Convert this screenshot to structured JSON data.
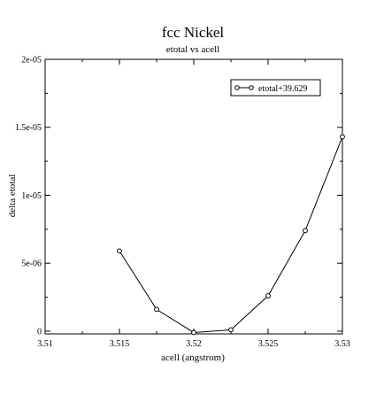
{
  "chart_data": {
    "type": "line",
    "title": "fcc Nickel",
    "subtitle": "etotal vs acell",
    "xlabel": "acell (angstrom)",
    "ylabel": "delta etotal",
    "xlim": [
      3.51,
      3.53
    ],
    "ylim": [
      -2e-07,
      2e-05
    ],
    "x_ticks": [
      3.51,
      3.515,
      3.52,
      3.525,
      3.53
    ],
    "x_tick_labels": [
      "3.51",
      "3.515",
      "3.52",
      "3.525",
      "3.53"
    ],
    "y_ticks": [
      0,
      5e-06,
      1e-05,
      1.5e-05,
      2e-05
    ],
    "y_tick_labels": [
      "0",
      "5e-06",
      "1e-05",
      "1.5e-05",
      "2e-05"
    ],
    "grid": false,
    "legend_position": "top-right",
    "series": [
      {
        "name": "etotal+39.629",
        "marker": "open-circle",
        "color": "#000000",
        "x": [
          3.515,
          3.5175,
          3.52,
          3.5225,
          3.525,
          3.5275,
          3.53
        ],
        "y": [
          5.9e-06,
          1.6e-06,
          -1e-07,
          1e-07,
          2.6e-06,
          7.4e-06,
          1.43e-05
        ]
      }
    ]
  }
}
